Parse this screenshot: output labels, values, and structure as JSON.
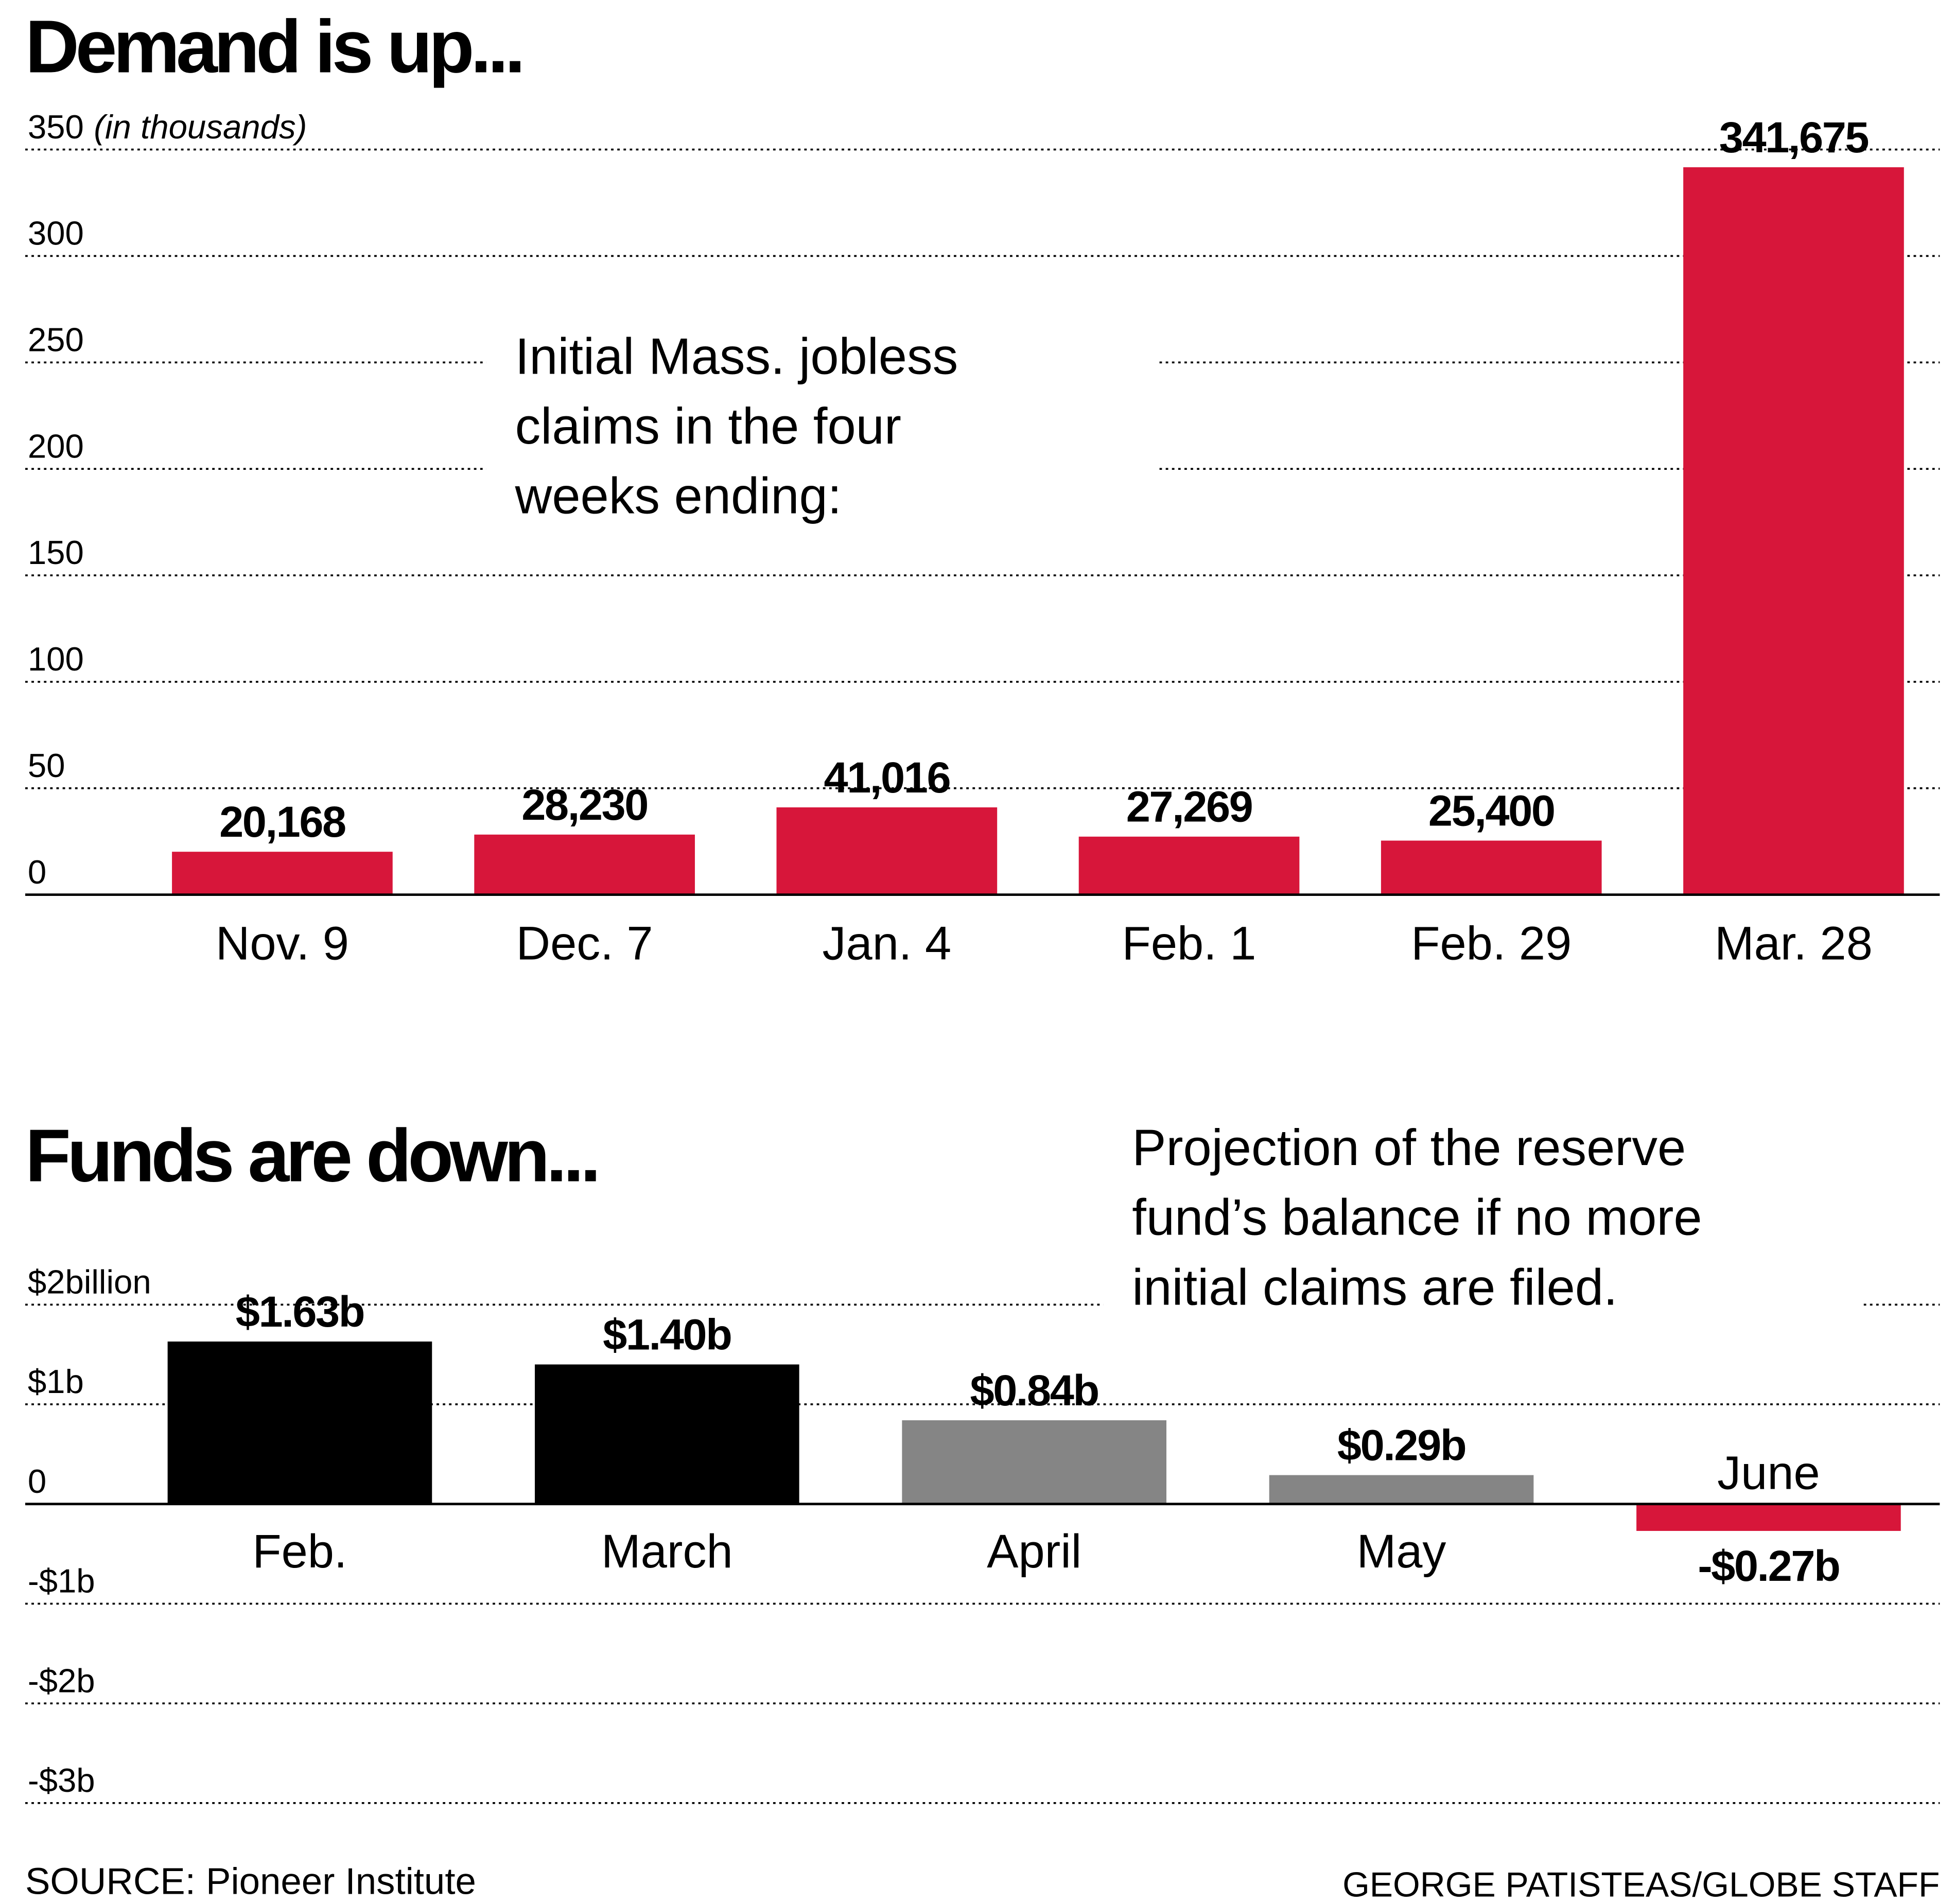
{
  "chart_data": [
    {
      "type": "bar",
      "title": "Demand is up...",
      "y_label": "(in thousands)",
      "annotation": [
        "Initial Mass. jobless",
        "claims in the four",
        "weeks ending:"
      ],
      "categories": [
        "Nov. 9",
        "Dec. 7",
        "Jan. 4",
        "Feb. 1",
        "Feb. 29",
        "Mar. 28"
      ],
      "values": [
        20.168,
        28.23,
        41.016,
        27.269,
        25.4,
        341.675
      ],
      "value_labels": [
        "20,168",
        "28,230",
        "41,016",
        "27,269",
        "25,400",
        "341,675"
      ],
      "colors": [
        "#d7163a",
        "#d7163a",
        "#d7163a",
        "#d7163a",
        "#d7163a",
        "#d7163a"
      ],
      "ylim": [
        0,
        350
      ],
      "yticks": [
        0,
        50,
        100,
        150,
        200,
        250,
        300,
        350
      ],
      "grid": true
    },
    {
      "type": "bar",
      "title": "Funds are down...",
      "annotation": [
        "Projection of the reserve",
        "fund’s balance if no more",
        "initial claims are filed."
      ],
      "categories": [
        "Feb.",
        "March",
        "April",
        "May",
        "June"
      ],
      "values": [
        1.63,
        1.4,
        0.84,
        0.29,
        -0.27
      ],
      "value_labels": [
        "$1.63b",
        "$1.40b",
        "$0.84b",
        "$0.29b",
        "-$0.27b"
      ],
      "colors": [
        "#000000",
        "#000000",
        "#858585",
        "#858585",
        "#d7163a"
      ],
      "ylim": [
        -3,
        2
      ],
      "yticks": [
        {
          "value": 2,
          "label": "$2billion"
        },
        {
          "value": 1,
          "label": "$1b"
        },
        0,
        {
          "value": -1,
          "label": "-$1b"
        },
        {
          "value": -2,
          "label": "-$2b"
        },
        {
          "value": -3,
          "label": "-$3b"
        }
      ],
      "grid": true
    }
  ],
  "source": "SOURCE: Pioneer Institute",
  "credit": "GEORGE PATISTEAS/GLOBE STAFF"
}
